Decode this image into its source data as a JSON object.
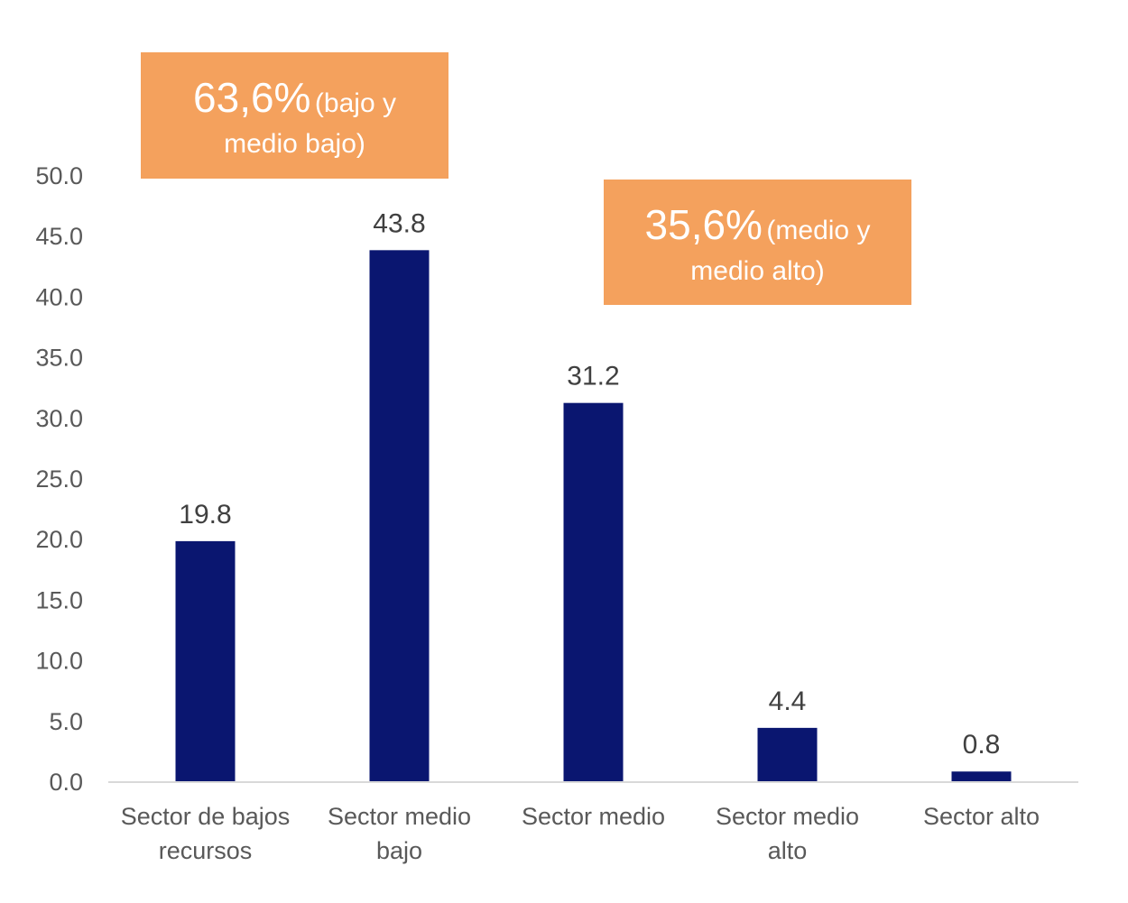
{
  "chart_data": {
    "type": "bar",
    "categories": [
      [
        "Sector de bajos",
        "recursos"
      ],
      [
        "Sector medio",
        "bajo"
      ],
      [
        "Sector medio"
      ],
      [
        "Sector medio",
        "alto"
      ],
      [
        "Sector alto"
      ]
    ],
    "values": [
      19.8,
      43.8,
      31.2,
      4.4,
      0.8
    ],
    "data_labels": [
      "19.8",
      "43.8",
      "31.2",
      "4.4",
      "0.8"
    ],
    "ylim": [
      0,
      50
    ],
    "yticks": [
      "0.0",
      "5.0",
      "10.0",
      "15.0",
      "20.0",
      "25.0",
      "30.0",
      "35.0",
      "40.0",
      "45.0",
      "50.0"
    ],
    "grid": false,
    "bar_color": "#0a1670",
    "annotations": [
      {
        "big": "63,6%",
        "small_a": "(bajo y",
        "small_b": "medio bajo)",
        "color": "#f4a15d"
      },
      {
        "big": "35,6%",
        "small_a": "(medio y",
        "small_b": "medio alto)",
        "color": "#f4a15d"
      }
    ]
  }
}
